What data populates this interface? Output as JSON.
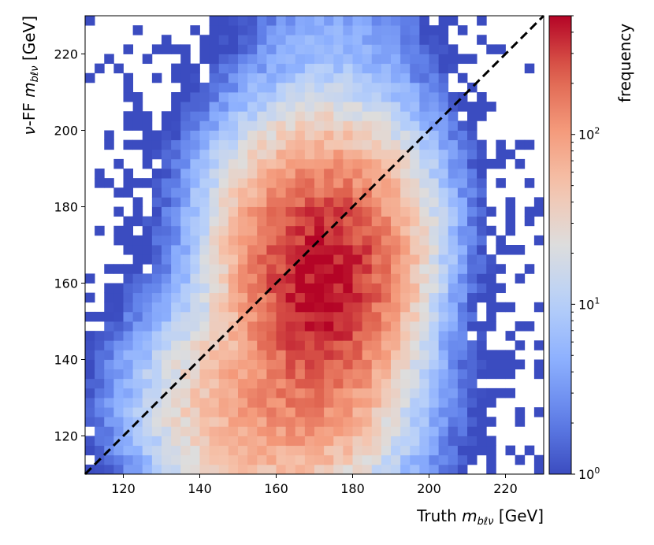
{
  "chart_data": {
    "type": "heatmap",
    "xlabel": "Truth m_bℓν [GeV]",
    "ylabel": "ν-FF m_bℓν [GeV]",
    "colorbar_label": "frequency",
    "xlim": [
      110,
      230
    ],
    "ylim": [
      110,
      230
    ],
    "xticks": [
      120,
      140,
      160,
      180,
      200,
      220
    ],
    "yticks": [
      120,
      140,
      160,
      180,
      200,
      220
    ],
    "color_scale": "log",
    "color_range": [
      1,
      500
    ],
    "colorbar_ticks": [
      {
        "value": 1,
        "base": "10",
        "exp": "0"
      },
      {
        "value": 10,
        "base": "10",
        "exp": "1"
      },
      {
        "value": 100,
        "base": "10",
        "exp": "2"
      }
    ],
    "colormap": "coolwarm",
    "bins": 48,
    "bin_width": 2.5,
    "peak": {
      "x": 172,
      "y": 162,
      "count": 480
    },
    "reference_line": {
      "from": [
        110,
        110
      ],
      "to": [
        230,
        230
      ],
      "style": "dashed",
      "color": "#000000"
    }
  }
}
